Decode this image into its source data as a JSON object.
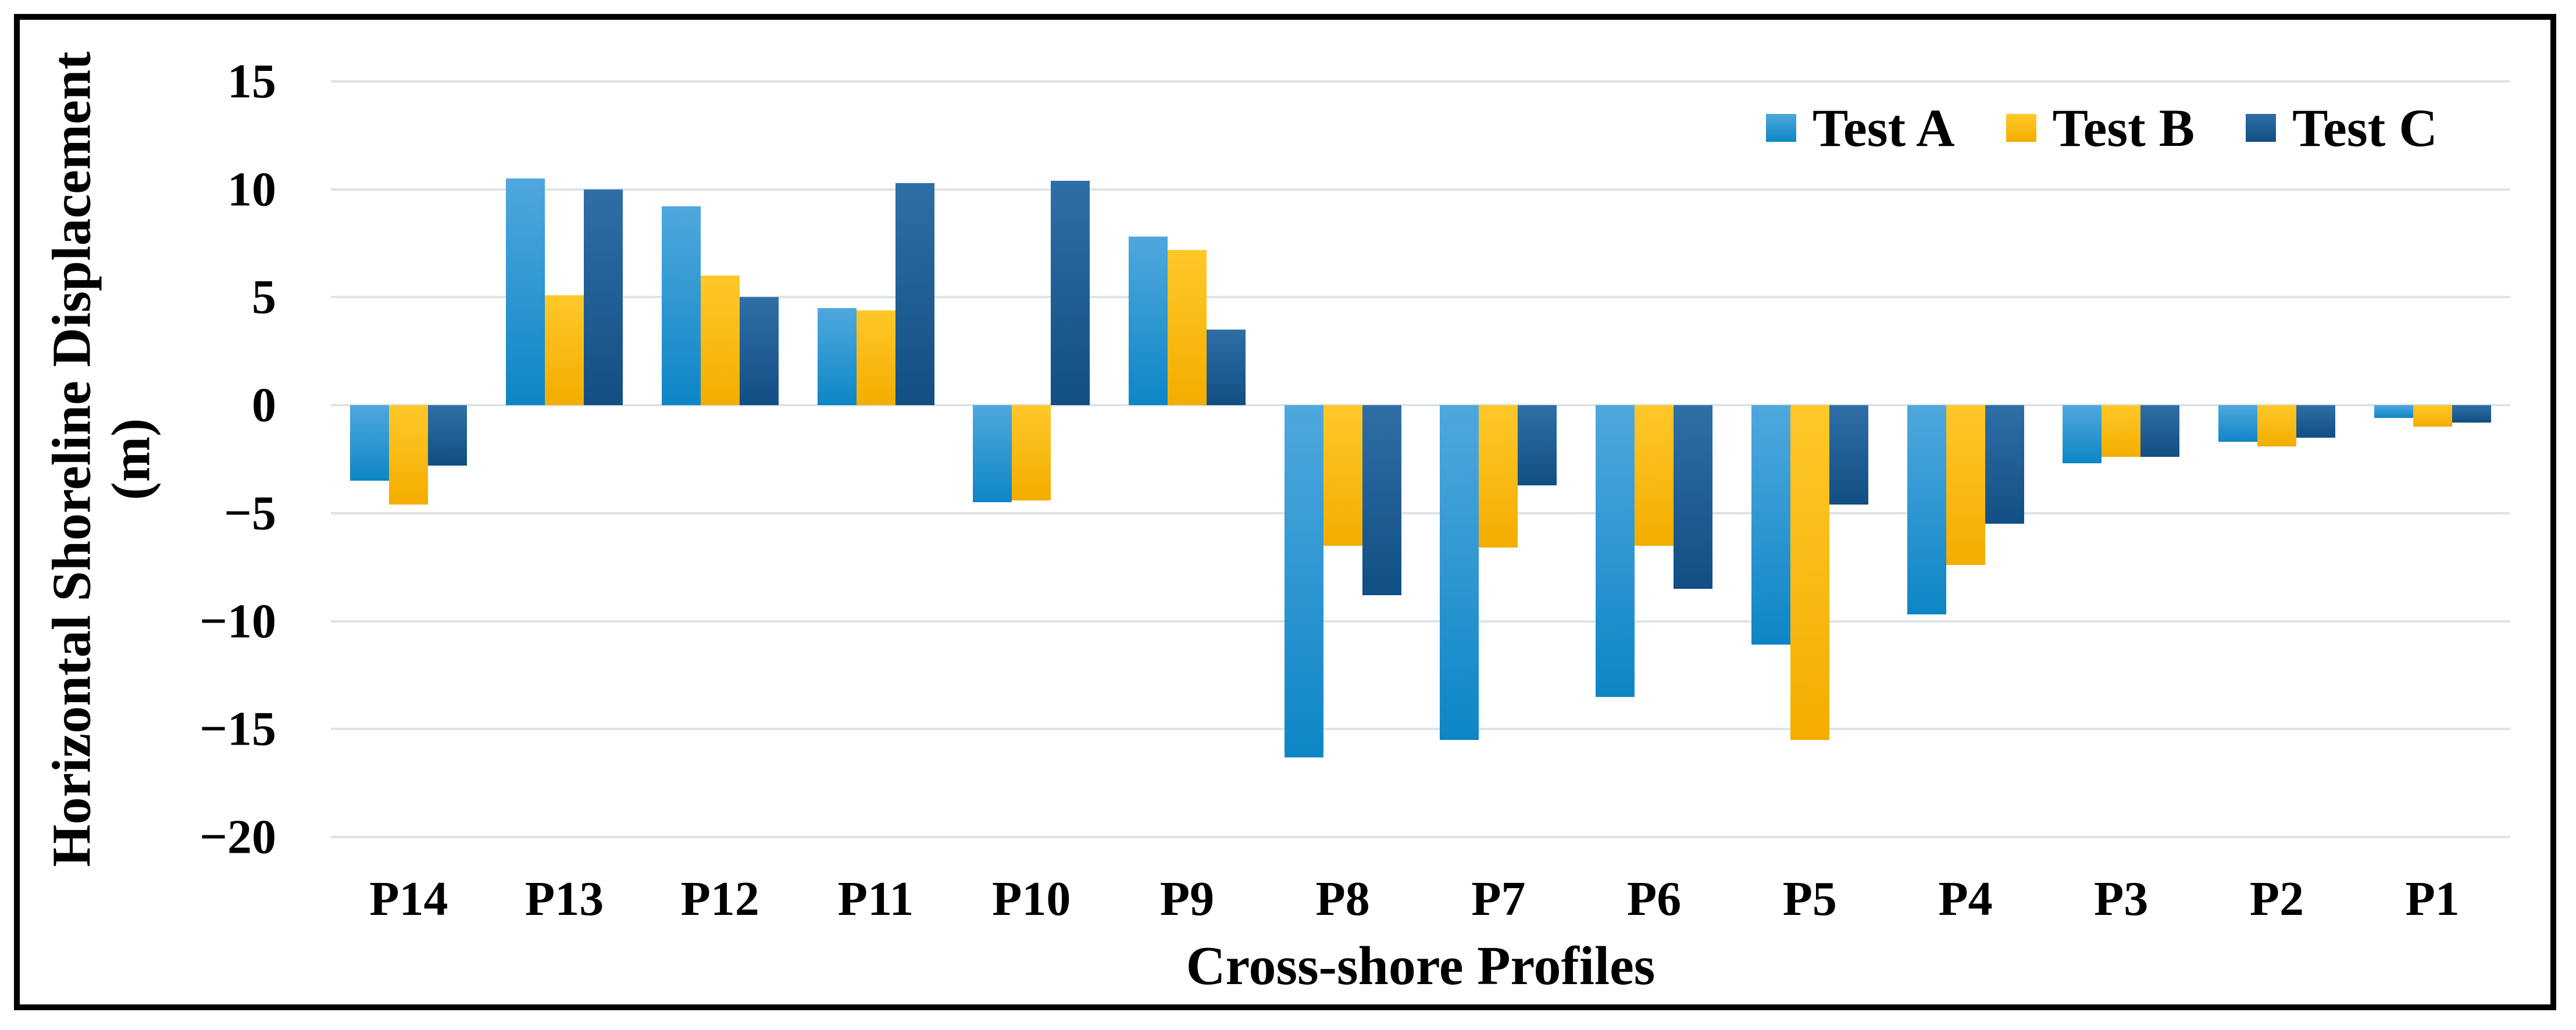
{
  "figure": {
    "y_axis": {
      "title_line1": "Horizontal Shoreline Displacement",
      "title_line2": "(m)",
      "tick_labels": [
        "15",
        "10",
        "5",
        "0",
        "−5",
        "−10",
        "−15",
        "−20"
      ]
    },
    "x_axis": {
      "title": "Cross-shore Profiles"
    },
    "frame_color": "#000000",
    "gridline_color": "#dce3e9"
  },
  "chart_data": {
    "type": "bar",
    "title": "",
    "xlabel": "Cross-shore Profiles",
    "ylabel": "Horizontal Shoreline Displacement (m)",
    "ylim": [
      -20,
      15
    ],
    "yticks": [
      15,
      10,
      5,
      0,
      -5,
      -10,
      -15,
      -20
    ],
    "grid": "horizontal",
    "legend_position": "top-right",
    "categories": [
      "P14",
      "P13",
      "P12",
      "P11",
      "P10",
      "P9",
      "P8",
      "P7",
      "P6",
      "P5",
      "P4",
      "P3",
      "P2",
      "P1"
    ],
    "series": [
      {
        "name": "Test A",
        "color_top": "#4fa8dd",
        "color_bottom": "#0d86c6",
        "values": [
          -3.5,
          10.5,
          9.2,
          4.5,
          -4.5,
          7.8,
          -16.3,
          -15.5,
          -13.5,
          -11.1,
          -9.7,
          -2.7,
          -1.7,
          -0.6
        ]
      },
      {
        "name": "Test B",
        "color_top": "#fec829",
        "color_bottom": "#f4ad00",
        "values": [
          -4.6,
          5.1,
          6.0,
          4.4,
          -4.4,
          7.2,
          -6.5,
          -6.6,
          -6.5,
          -15.5,
          -7.4,
          -2.4,
          -1.9,
          -1.0
        ]
      },
      {
        "name": "Test C",
        "color_top": "#2f6fa6",
        "color_bottom": "#114e84",
        "values": [
          -2.8,
          10.0,
          5.0,
          10.3,
          10.4,
          3.5,
          -8.8,
          -3.7,
          -8.5,
          -4.6,
          -5.5,
          -2.4,
          -1.5,
          -0.8
        ]
      }
    ]
  }
}
